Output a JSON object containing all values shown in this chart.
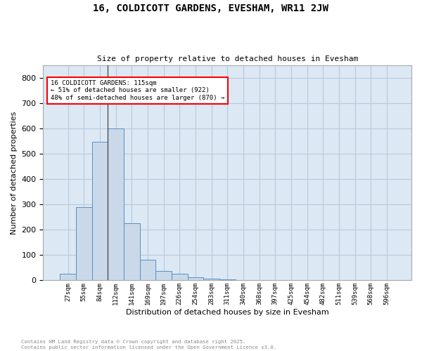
{
  "title_line1": "16, COLDICOTT GARDENS, EVESHAM, WR11 2JW",
  "title_line2": "Size of property relative to detached houses in Evesham",
  "xlabel": "Distribution of detached houses by size in Evesham",
  "ylabel": "Number of detached properties",
  "footnote": "Contains HM Land Registry data © Crown copyright and database right 2025.\nContains public sector information licensed under the Open Government Licence v3.0.",
  "bar_labels": [
    "27sqm",
    "55sqm",
    "84sqm",
    "112sqm",
    "141sqm",
    "169sqm",
    "197sqm",
    "226sqm",
    "254sqm",
    "283sqm",
    "311sqm",
    "340sqm",
    "368sqm",
    "397sqm",
    "425sqm",
    "454sqm",
    "482sqm",
    "511sqm",
    "539sqm",
    "568sqm",
    "596sqm"
  ],
  "bar_values": [
    25,
    290,
    548,
    600,
    225,
    82,
    37,
    27,
    12,
    8,
    5,
    0,
    0,
    0,
    0,
    0,
    0,
    0,
    0,
    0,
    0
  ],
  "bar_color": "#c9d9ea",
  "bar_edge_color": "#5a8fc0",
  "ylim": [
    0,
    850
  ],
  "yticks": [
    0,
    100,
    200,
    300,
    400,
    500,
    600,
    700,
    800
  ],
  "grid_color": "#b8c8dc",
  "background_color": "#dce8f4",
  "annotation_text": "16 COLDICOTT GARDENS: 115sqm\n← 51% of detached houses are smaller (922)\n48% of semi-detached houses are larger (870) →",
  "vline_x_index": 3,
  "box_color": "white",
  "box_edge_color": "red"
}
